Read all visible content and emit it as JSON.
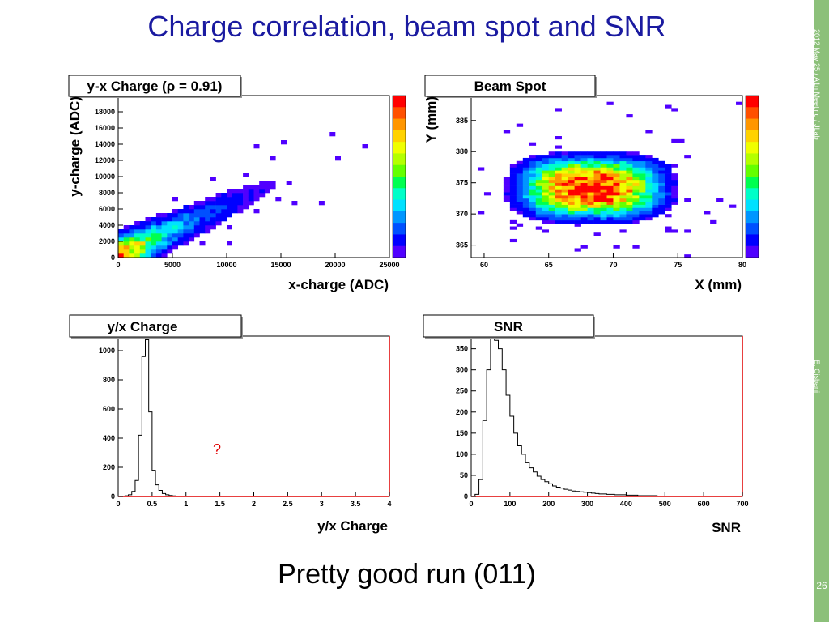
{
  "slide": {
    "title": "Charge correlation, beam spot and SNR",
    "caption": "Pretty good run (011)",
    "side_date": "2012 May 25 / A1n Meeting / JLab",
    "side_author": "E. Cisbani",
    "page_number": "26",
    "annotation": "?"
  },
  "chart_data": [
    {
      "type": "heatmap",
      "title": "y-x Charge (ρ = 0.91)",
      "xlabel": "x-charge (ADC)",
      "ylabel": "y-charge (ADC)",
      "xlim": [
        0,
        25000
      ],
      "ylim": [
        0,
        20000
      ],
      "xticks": [
        "0",
        "5000",
        "10000",
        "15000",
        "20000",
        "25000"
      ],
      "yticks": [
        "0",
        "2000",
        "4000",
        "6000",
        "8000",
        "10000",
        "12000",
        "14000",
        "16000",
        "18000"
      ],
      "correlation": 0.91
    },
    {
      "type": "heatmap",
      "title": "Beam Spot",
      "xlabel": "X (mm)",
      "ylabel": "Y (mm)",
      "xlim": [
        59,
        80
      ],
      "ylim": [
        363,
        389
      ],
      "xticks": [
        "60",
        "65",
        "70",
        "75",
        "80"
      ],
      "yticks": [
        "365",
        "370",
        "375",
        "380",
        "385"
      ]
    },
    {
      "type": "line",
      "title": "y/x Charge",
      "xlabel": "y/x Charge",
      "ylabel": "",
      "xlim": [
        0,
        4
      ],
      "ylim": [
        0,
        1100
      ],
      "xticks": [
        "0",
        "0.5",
        "1",
        "1.5",
        "2",
        "2.5",
        "3",
        "3.5",
        "4"
      ],
      "yticks": [
        "0",
        "200",
        "400",
        "600",
        "800",
        "1000"
      ],
      "bin_width": 0.05,
      "values": [
        0,
        0,
        5,
        12,
        35,
        110,
        420,
        960,
        1075,
        580,
        180,
        80,
        42,
        20,
        12,
        7,
        4,
        3,
        2,
        2,
        1,
        1,
        1,
        1,
        1,
        0,
        0,
        0,
        0,
        0,
        0,
        0,
        0,
        0,
        0,
        0,
        0,
        0,
        0,
        0,
        0,
        0,
        0,
        0,
        0,
        0,
        0,
        0,
        0,
        0,
        0,
        0,
        0,
        0,
        0,
        0,
        0,
        0,
        0,
        0,
        0,
        0,
        0,
        0,
        0,
        0,
        0,
        0,
        0,
        0,
        0,
        0,
        0,
        0,
        0,
        0,
        0,
        0,
        0,
        0
      ]
    },
    {
      "type": "line",
      "title": "SNR",
      "xlabel": "SNR",
      "ylabel": "",
      "xlim": [
        0,
        700
      ],
      "ylim": [
        0,
        380
      ],
      "xticks": [
        "0",
        "100",
        "200",
        "300",
        "400",
        "500",
        "600",
        "700"
      ],
      "yticks": [
        "0",
        "50",
        "100",
        "150",
        "200",
        "250",
        "300",
        "350"
      ],
      "bin_width": 10,
      "values": [
        0,
        5,
        40,
        180,
        300,
        375,
        370,
        350,
        300,
        240,
        190,
        150,
        120,
        100,
        80,
        68,
        58,
        48,
        40,
        35,
        30,
        25,
        22,
        20,
        17,
        15,
        13,
        12,
        11,
        10,
        9,
        8,
        7,
        6,
        6,
        5,
        5,
        4,
        4,
        4,
        3,
        3,
        3,
        2,
        2,
        2,
        2,
        2,
        1,
        1,
        1,
        1,
        1,
        1,
        1,
        1,
        0,
        1,
        0,
        0,
        1,
        0,
        0,
        0,
        0,
        0,
        0,
        0,
        0,
        0
      ]
    }
  ]
}
